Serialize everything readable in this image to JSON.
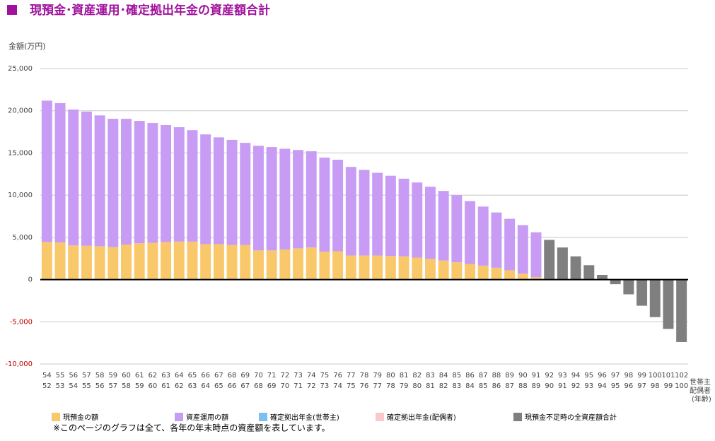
{
  "chart_data": {
    "type": "bar",
    "stacked": true,
    "title": "現預金･資産運用･確定拠出年金の資産額合計",
    "title_color": "#a0129e",
    "y_label": "金額(万円)",
    "categories": [
      "54",
      "55",
      "56",
      "57",
      "58",
      "59",
      "60",
      "61",
      "62",
      "63",
      "64",
      "65",
      "66",
      "67",
      "68",
      "69",
      "70",
      "71",
      "72",
      "73",
      "74",
      "75",
      "76",
      "77",
      "78",
      "79",
      "80",
      "81",
      "82",
      "83",
      "84",
      "85",
      "86",
      "87",
      "88",
      "89",
      "90",
      "91",
      "92",
      "93",
      "94",
      "95",
      "96",
      "97",
      "98",
      "99",
      "100",
      "101",
      "102"
    ],
    "categories2": [
      "52",
      "53",
      "54",
      "55",
      "56",
      "57",
      "58",
      "59",
      "60",
      "61",
      "62",
      "63",
      "64",
      "65",
      "66",
      "67",
      "68",
      "69",
      "70",
      "71",
      "72",
      "73",
      "74",
      "75",
      "76",
      "77",
      "78",
      "79",
      "80",
      "81",
      "82",
      "83",
      "84",
      "85",
      "86",
      "87",
      "88",
      "89",
      "90",
      "91",
      "92",
      "93",
      "94",
      "95",
      "96",
      "97",
      "98",
      "99",
      "100"
    ],
    "x_row_labels": [
      "世帯主",
      "配偶者",
      "(年齢)"
    ],
    "series": [
      {
        "name": "現預金の額",
        "color": "#f9c86a",
        "values": [
          4450,
          4400,
          4050,
          4000,
          3950,
          3850,
          4150,
          4300,
          4350,
          4450,
          4500,
          4500,
          4200,
          4200,
          4100,
          4100,
          3450,
          3450,
          3550,
          3700,
          3800,
          3300,
          3350,
          2850,
          2850,
          2850,
          2800,
          2750,
          2600,
          2450,
          2250,
          2050,
          1850,
          1650,
          1400,
          1100,
          700,
          300,
          null,
          null,
          null,
          null,
          null,
          null,
          null,
          null,
          null,
          null,
          null
        ]
      },
      {
        "name": "資産運用の額",
        "color": "#c89cf5",
        "values": [
          16750,
          16500,
          16100,
          15900,
          15500,
          15200,
          14900,
          14500,
          14200,
          13850,
          13550,
          13200,
          13000,
          12650,
          12450,
          12100,
          12400,
          12250,
          11950,
          11650,
          11400,
          11150,
          10850,
          10500,
          10150,
          9800,
          9500,
          9200,
          8900,
          8550,
          8250,
          7950,
          7450,
          7000,
          6550,
          6100,
          5750,
          5300,
          null,
          null,
          null,
          null,
          null,
          null,
          null,
          null,
          null,
          null,
          null
        ]
      },
      {
        "name": "確定拠出年金(世帯主)",
        "color": "#7cc0ee",
        "values": [
          null,
          null,
          null,
          null,
          null,
          null,
          null,
          null,
          null,
          null,
          null,
          null,
          null,
          null,
          null,
          null,
          null,
          null,
          null,
          null,
          null,
          null,
          null,
          null,
          null,
          null,
          null,
          null,
          null,
          null,
          null,
          null,
          null,
          null,
          null,
          null,
          null,
          null,
          null,
          null,
          null,
          null,
          null,
          null,
          null,
          null,
          null,
          null,
          null
        ]
      },
      {
        "name": "確定拠出年金(配偶者)",
        "color": "#f9c9cc",
        "values": [
          null,
          null,
          null,
          null,
          null,
          null,
          null,
          null,
          null,
          null,
          null,
          null,
          null,
          null,
          null,
          null,
          null,
          null,
          null,
          null,
          null,
          null,
          null,
          null,
          null,
          null,
          null,
          null,
          null,
          null,
          null,
          null,
          null,
          null,
          null,
          null,
          null,
          null,
          null,
          null,
          null,
          null,
          null,
          null,
          null,
          null,
          null,
          null,
          null
        ]
      },
      {
        "name": "現預金不足時の全資産額合計",
        "color": "#7f7f7f",
        "values": [
          null,
          null,
          null,
          null,
          null,
          null,
          null,
          null,
          null,
          null,
          null,
          null,
          null,
          null,
          null,
          null,
          null,
          null,
          null,
          null,
          null,
          null,
          null,
          null,
          null,
          null,
          null,
          null,
          null,
          null,
          null,
          null,
          null,
          null,
          null,
          null,
          null,
          null,
          4700,
          3800,
          2750,
          1700,
          550,
          -550,
          -1750,
          -3100,
          -4450,
          -5850,
          -7400
        ]
      }
    ],
    "ylim": [
      -10000,
      25000
    ],
    "yticks": [
      {
        "value": -10000,
        "label": "-10,000"
      },
      {
        "value": -5000,
        "label": "-5,000"
      },
      0,
      {
        "value": 5000,
        "label": "5,000"
      },
      {
        "value": 10000,
        "label": "10,000"
      },
      {
        "value": 15000,
        "label": "15,000"
      },
      {
        "value": 20000,
        "label": "20,000"
      },
      {
        "value": 25000,
        "label": "25,000"
      }
    ],
    "negative_tick_color": "#c00000",
    "grid": true,
    "note": "※このページのグラフは全て、各年の年末時点の資産額を表しています。"
  }
}
